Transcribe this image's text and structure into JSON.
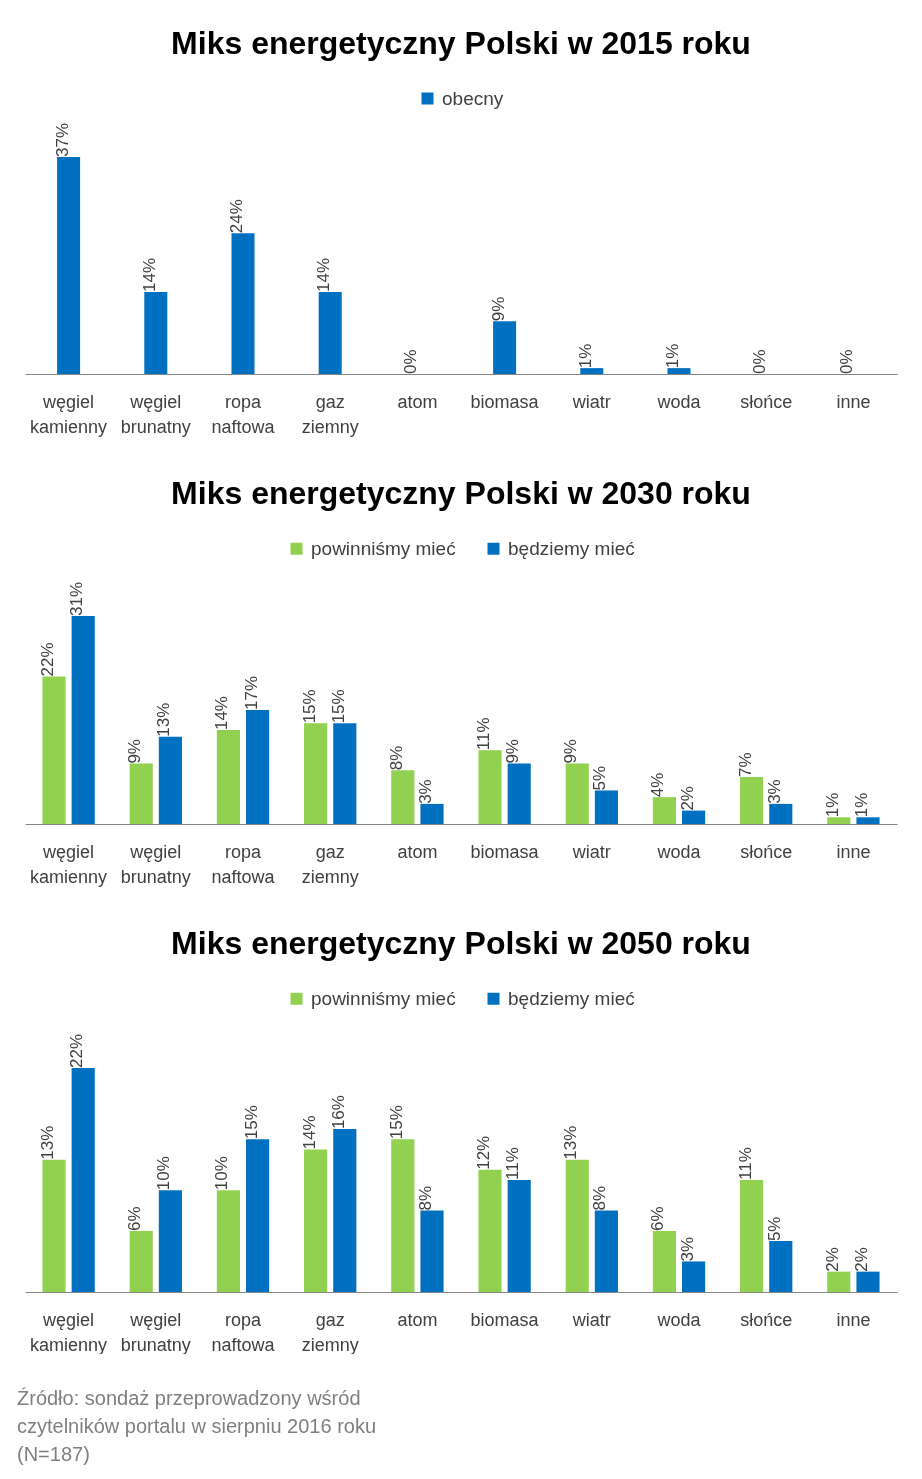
{
  "chart_data": [
    {
      "type": "bar",
      "title": "Miks energetyczny Polski w 2015 roku",
      "categories": [
        "węgiel kamienny",
        "węgiel brunatny",
        "ropa naftowa",
        "gaz ziemny",
        "atom",
        "biomasa",
        "wiatr",
        "woda",
        "słońce",
        "inne"
      ],
      "legend": "top",
      "series": [
        {
          "name": "obecny",
          "color": "#0070c0",
          "values": [
            37,
            14,
            24,
            14,
            0,
            9,
            1,
            1,
            0,
            0
          ],
          "value_labels": [
            "37%",
            "14%",
            "24%",
            "14%",
            "0%",
            "9%",
            "1%",
            "1%",
            "0%",
            "0%"
          ]
        }
      ]
    },
    {
      "type": "bar",
      "title": "Miks energetyczny Polski w 2030 roku",
      "categories": [
        "węgiel kamienny",
        "węgiel brunatny",
        "ropa naftowa",
        "gaz ziemny",
        "atom",
        "biomasa",
        "wiatr",
        "woda",
        "słońce",
        "inne"
      ],
      "legend": "top",
      "series": [
        {
          "name": "powinniśmy mieć",
          "color": "#92d050",
          "values": [
            22,
            9,
            14,
            15,
            8,
            11,
            9,
            4,
            7,
            1
          ],
          "value_labels": [
            "22%",
            "9%",
            "14%",
            "15%",
            "8%",
            "11%",
            "9%",
            "4%",
            "7%",
            "1%"
          ]
        },
        {
          "name": "będziemy mieć",
          "color": "#0070c0",
          "values": [
            31,
            13,
            17,
            15,
            3,
            9,
            5,
            2,
            3,
            1
          ],
          "value_labels": [
            "31%",
            "13%",
            "17%",
            "15%",
            "3%",
            "9%",
            "5%",
            "2%",
            "3%",
            "1%"
          ]
        }
      ]
    },
    {
      "type": "bar",
      "title": "Miks energetyczny Polski w 2050 roku",
      "categories": [
        "węgiel kamienny",
        "węgiel brunatny",
        "ropa naftowa",
        "gaz ziemny",
        "atom",
        "biomasa",
        "wiatr",
        "woda",
        "słońce",
        "inne"
      ],
      "legend": "top",
      "series": [
        {
          "name": "powinniśmy mieć",
          "color": "#92d050",
          "values": [
            13,
            6,
            10,
            14,
            15,
            12,
            13,
            6,
            11,
            2
          ],
          "value_labels": [
            "13%",
            "6%",
            "10%",
            "14%",
            "15%",
            "12%",
            "13%",
            "6%",
            "11%",
            "2%"
          ]
        },
        {
          "name": "będziemy mieć",
          "color": "#0070c0",
          "values": [
            22,
            10,
            15,
            16,
            8,
            11,
            8,
            3,
            5,
            2
          ],
          "value_labels": [
            "22%",
            "10%",
            "15%",
            "16%",
            "8%",
            "11%",
            "8%",
            "3%",
            "5%",
            "2%"
          ]
        }
      ],
      "annotations": [
        "Źródło: sondaż przeprowadzony wśród czytelników portalu w sierpniu 2016 roku (N=187)"
      ]
    }
  ]
}
